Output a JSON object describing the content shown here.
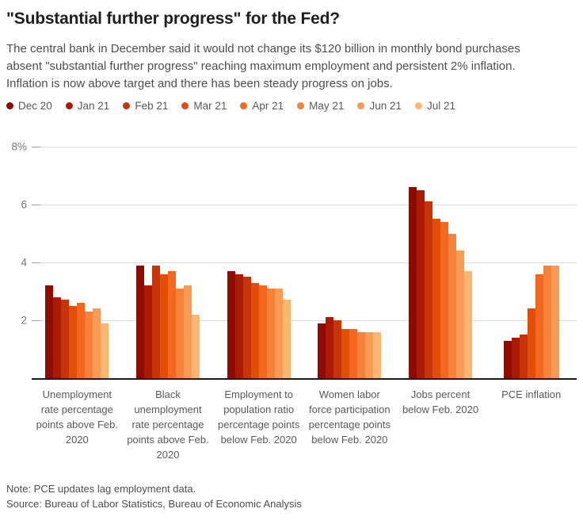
{
  "header": {
    "title": "\"Substantial further progress\" for the Fed?",
    "subtitle": "The central bank in December said it would not change its $120 billion in monthly bond purchases absent \"substantial further progress\" reaching maximum employment and persistent 2% inflation. Inflation is now above target and there has been steady progress on jobs."
  },
  "chart_data": {
    "type": "bar",
    "title": "\"Substantial further progress\" for the Fed?",
    "xlabel": "",
    "ylabel": "",
    "ylim": [
      0,
      8
    ],
    "grid": true,
    "legend_position": "top",
    "yticks": [
      {
        "value": 8,
        "label": "8%"
      },
      {
        "value": 6,
        "label": "6"
      },
      {
        "value": 4,
        "label": "4"
      },
      {
        "value": 2,
        "label": "2"
      }
    ],
    "categories": [
      "Unemployment rate percentage points above Feb. 2020",
      "Black unemployment rate percentage points above Feb. 2020",
      "Employment to population ratio percentage points below Feb. 2020",
      "Women labor force participation percentage points below Feb. 2020",
      "Jobs percent below Feb. 2020",
      "PCE inflation"
    ],
    "series": [
      {
        "name": "Dec 20",
        "color": "#8e0b02",
        "values": [
          3.2,
          3.9,
          3.7,
          1.9,
          6.6,
          1.3
        ]
      },
      {
        "name": "Jan 21",
        "color": "#ab1b03",
        "values": [
          2.8,
          3.2,
          3.6,
          2.1,
          6.5,
          1.4
        ]
      },
      {
        "name": "Feb 21",
        "color": "#c63408",
        "values": [
          2.7,
          3.9,
          3.5,
          2.0,
          6.1,
          1.5
        ]
      },
      {
        "name": "Mar 21",
        "color": "#e04e08",
        "values": [
          2.5,
          3.6,
          3.3,
          1.7,
          5.5,
          2.4
        ]
      },
      {
        "name": "Apr 21",
        "color": "#f4671f",
        "values": [
          2.6,
          3.7,
          3.2,
          1.7,
          5.4,
          3.6
        ]
      },
      {
        "name": "May 21",
        "color": "#f6813a",
        "values": [
          2.3,
          3.1,
          3.1,
          1.6,
          5.0,
          3.9
        ]
      },
      {
        "name": "Jun 21",
        "color": "#f89b55",
        "values": [
          2.4,
          3.2,
          3.1,
          1.6,
          4.4,
          3.9
        ]
      },
      {
        "name": "Jul 21",
        "color": "#fbb671",
        "values": [
          1.9,
          2.2,
          2.7,
          1.6,
          3.7,
          null
        ]
      }
    ]
  },
  "footer": {
    "note": "Note: PCE updates lag employment data.",
    "source": "Source: Bureau of Labor Statistics, Bureau of Economic Analysis"
  }
}
